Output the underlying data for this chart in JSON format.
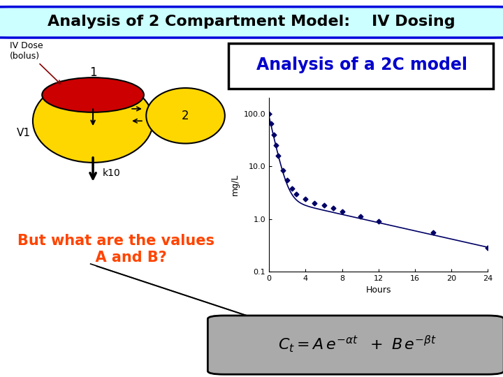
{
  "title_text": "Analysis of 2 Compartment Model:    IV Dosing",
  "title_bg": "#ccffff",
  "title_border": "#0000dd",
  "title_fontsize": 16,
  "subtitle_text": "Analysis of a 2C model",
  "subtitle_fontsize": 17,
  "subtitle_color": "#0000cc",
  "but_color": "#ff4400",
  "but_fontsize": 15,
  "formula_fontsize": 16,
  "formula_bg": "#aaaaaa",
  "formula_border": "#000000",
  "iv_label": "IV Dose\n(bolus)",
  "v1_label": "V1",
  "k10_label": "k10",
  "comp1_label": "1",
  "comp2_label": "2",
  "plot_ylabel": "mg/L",
  "plot_xlabel": "Hours",
  "plot_xlim": [
    0,
    24
  ],
  "plot_ylim_log": [
    0.1,
    200
  ],
  "plot_yticks": [
    0.1,
    1.0,
    10.0,
    100.0
  ],
  "plot_ytick_labels": [
    "0.1",
    "1.0",
    "10.0",
    "100.0"
  ],
  "plot_xticks": [
    0,
    4,
    8,
    12,
    16,
    20,
    24
  ],
  "plot_color": "#000066",
  "plot_data_x": [
    0,
    0.25,
    0.5,
    0.75,
    1.0,
    1.5,
    2.0,
    2.5,
    3.0,
    4.0,
    5.0,
    6.0,
    7.0,
    8.0,
    10.0,
    12.0,
    18.0,
    24.0
  ],
  "plot_data_y": [
    100.0,
    65.0,
    40.0,
    25.0,
    16.0,
    8.5,
    5.5,
    3.8,
    3.0,
    2.4,
    2.0,
    1.8,
    1.6,
    1.4,
    1.1,
    0.9,
    0.55,
    0.28
  ],
  "bg_color": "#ffffff",
  "comp1_yellow": "#FFD700",
  "comp1_red": "#CC0000",
  "comp2_yellow": "#FFD700"
}
